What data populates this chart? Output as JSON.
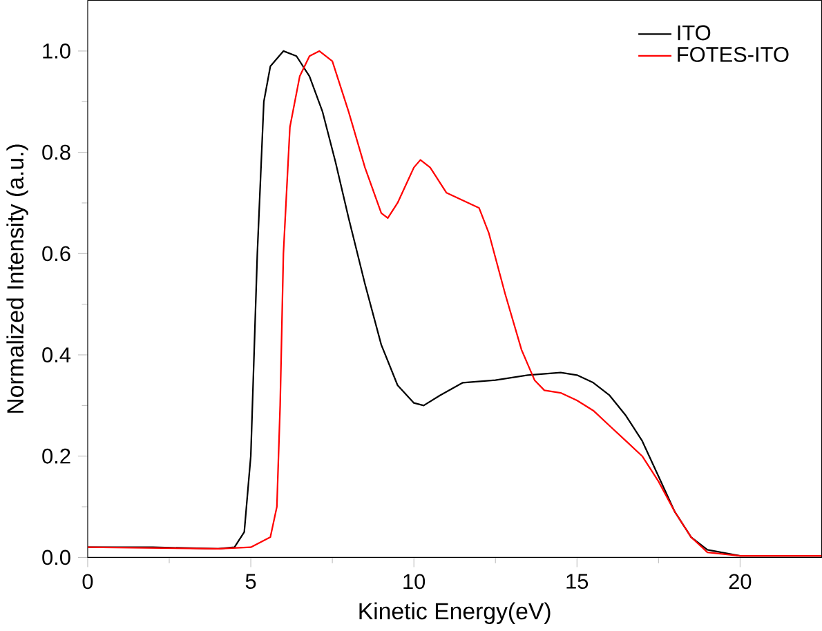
{
  "chart_data": {
    "type": "line",
    "xlabel": "Kinetic Energy(eV)",
    "ylabel": "Normalized Intensity (a.u.)",
    "xlim": [
      0,
      22.5
    ],
    "ylim": [
      0,
      1.1
    ],
    "xticks": [
      0,
      5,
      10,
      15,
      20
    ],
    "yticks": [
      {
        "value": 0,
        "label": "0.0"
      },
      {
        "value": 0.2,
        "label": "0.2"
      },
      {
        "value": 0.4,
        "label": "0.4"
      },
      {
        "value": 0.6,
        "label": "0.6"
      },
      {
        "value": 0.8,
        "label": "0.8"
      },
      {
        "value": 1.0,
        "label": "1.0"
      }
    ],
    "grid": false,
    "legend": "top right",
    "marker": "none",
    "line_style": "solid",
    "series": [
      {
        "name": "ITO",
        "color": "#000000",
        "x": [
          0,
          2,
          4,
          4.5,
          4.8,
          5.0,
          5.2,
          5.4,
          5.6,
          6.0,
          6.4,
          6.8,
          7.2,
          7.6,
          8,
          8.5,
          9,
          9.5,
          10,
          10.3,
          10.8,
          11.5,
          12.5,
          13.5,
          14.5,
          15,
          15.5,
          16,
          16.5,
          17,
          17.5,
          18,
          18.5,
          19,
          20,
          22.5
        ],
        "values": [
          0.02,
          0.02,
          0.017,
          0.02,
          0.05,
          0.2,
          0.6,
          0.9,
          0.97,
          1.0,
          0.99,
          0.95,
          0.88,
          0.78,
          0.67,
          0.54,
          0.42,
          0.34,
          0.305,
          0.3,
          0.32,
          0.345,
          0.35,
          0.36,
          0.365,
          0.36,
          0.345,
          0.32,
          0.28,
          0.23,
          0.16,
          0.09,
          0.04,
          0.015,
          0.003,
          0.003
        ]
      },
      {
        "name": "FOTES-ITO",
        "color": "#ff0000",
        "x": [
          0,
          4,
          5,
          5.6,
          5.8,
          5.9,
          6.0,
          6.2,
          6.5,
          6.8,
          7.1,
          7.5,
          8,
          8.5,
          9,
          9.2,
          9.5,
          10,
          10.2,
          10.5,
          11,
          11.5,
          12,
          12.3,
          12.8,
          13.3,
          13.7,
          14,
          14.5,
          15,
          15.5,
          16,
          16.5,
          17,
          17.5,
          18,
          18.5,
          19,
          20,
          22.5
        ],
        "values": [
          0.02,
          0.017,
          0.02,
          0.04,
          0.1,
          0.3,
          0.6,
          0.85,
          0.95,
          0.99,
          1.0,
          0.98,
          0.88,
          0.77,
          0.68,
          0.67,
          0.7,
          0.77,
          0.785,
          0.77,
          0.72,
          0.705,
          0.69,
          0.64,
          0.52,
          0.41,
          0.35,
          0.33,
          0.325,
          0.31,
          0.29,
          0.26,
          0.23,
          0.2,
          0.15,
          0.09,
          0.04,
          0.01,
          0.003,
          0.003
        ]
      }
    ]
  }
}
